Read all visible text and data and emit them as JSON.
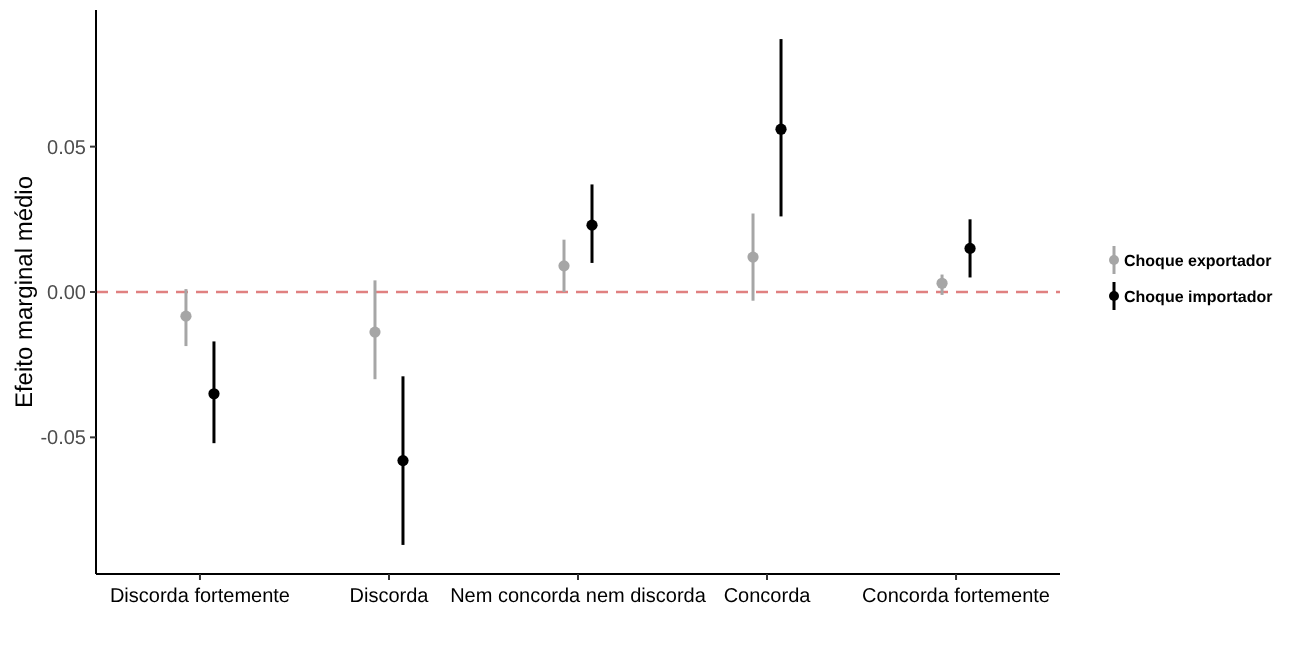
{
  "chart_data": {
    "type": "scatter",
    "ylabel": "Efeito marginal médio",
    "categories": [
      "Discorda fortemente",
      "Discorda",
      "Nem concorda nem discorda",
      "Concorda",
      "Concorda fortemente"
    ],
    "series": [
      {
        "name": "Choque exportador",
        "color": "#a6a6a6",
        "values": [
          -0.0083,
          -0.0138,
          0.009,
          0.012,
          0.003
        ],
        "errors": [
          [
            -0.0186,
            0.001
          ],
          [
            -0.03,
            0.004
          ],
          [
            0,
            0.018
          ],
          [
            -0.003,
            0.027
          ],
          [
            -0.001,
            0.006
          ]
        ]
      },
      {
        "name": "Choque importador",
        "color": "#000000",
        "values": [
          -0.035,
          -0.058,
          0.023,
          0.056,
          0.015
        ],
        "errors": [
          [
            -0.052,
            -0.017
          ],
          [
            -0.087,
            -0.029
          ],
          [
            0.01,
            0.037
          ],
          [
            0.026,
            0.087
          ],
          [
            0.005,
            0.025
          ]
        ]
      }
    ],
    "ylim": [
      -0.097,
      0.097
    ],
    "yticks": [
      {
        "value": -0.05,
        "label": "-0.05"
      },
      {
        "value": 0,
        "label": "0.00"
      },
      {
        "value": 0.05,
        "label": "0.05"
      }
    ],
    "ref_lines": [
      {
        "axis": "y",
        "value": 0,
        "color": "#e08080",
        "line_style": "dashed"
      }
    ],
    "grid": false,
    "legend": "right",
    "marker": "circle"
  }
}
